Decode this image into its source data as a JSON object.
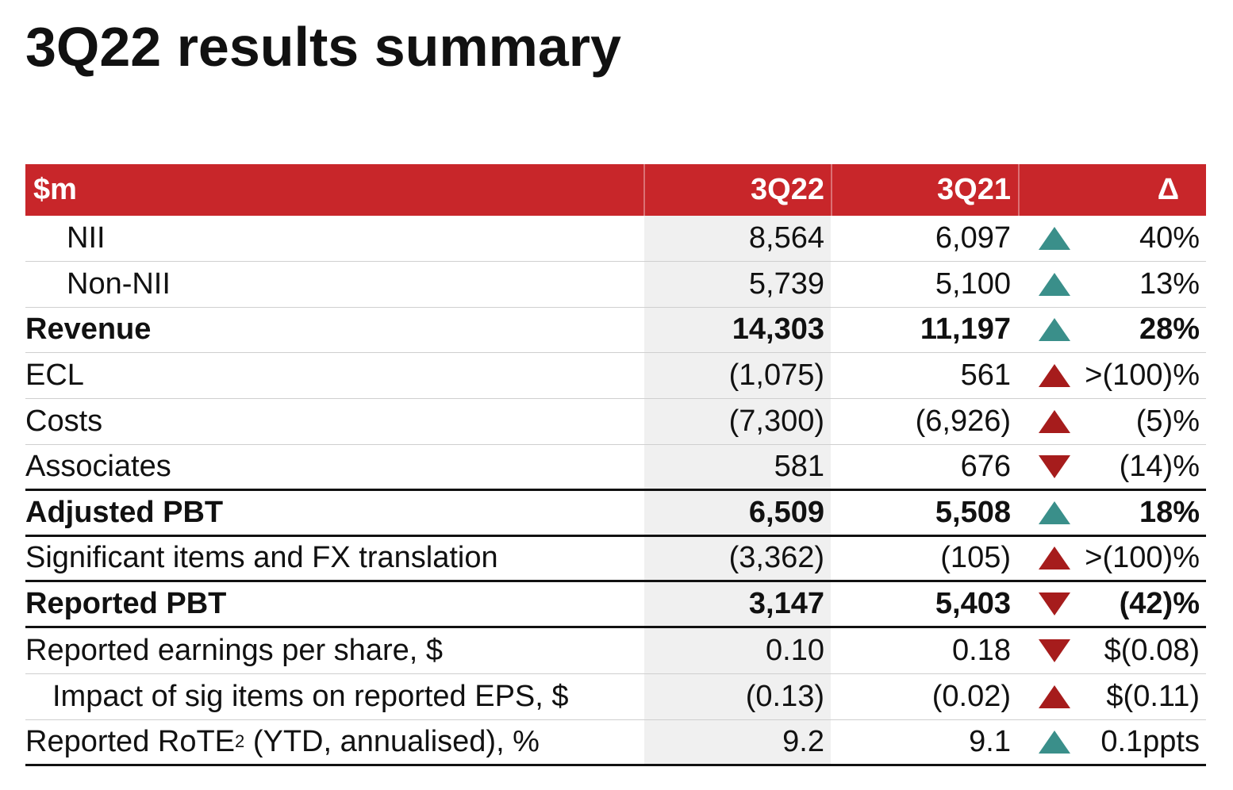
{
  "title": "3Q22 results summary",
  "colors": {
    "header_bg": "#c8262a",
    "up_good": "#3a8f8a",
    "adverse": "#a61c1c"
  },
  "table": {
    "headers": {
      "label": "$m",
      "q22": "3Q22",
      "q21": "3Q21",
      "delta": "Δ"
    },
    "rows": [
      {
        "label": "NII",
        "q22": "8,564",
        "q21": "6,097",
        "delta": "40%",
        "arrow": "up",
        "arrow_color": "#3a8f8a"
      },
      {
        "label": "Non-NII",
        "q22": "5,739",
        "q21": "5,100",
        "delta": "13%",
        "arrow": "up",
        "arrow_color": "#3a8f8a"
      },
      {
        "label": "Revenue",
        "q22": "14,303",
        "q21": "11,197",
        "delta": "28%",
        "arrow": "up",
        "arrow_color": "#3a8f8a"
      },
      {
        "label": "ECL",
        "q22": "(1,075)",
        "q21": "561",
        "delta": ">(100)%",
        "arrow": "up",
        "arrow_color": "#a61c1c"
      },
      {
        "label": "Costs",
        "q22": "(7,300)",
        "q21": "(6,926)",
        "delta": "(5)%",
        "arrow": "up",
        "arrow_color": "#a61c1c"
      },
      {
        "label": "Associates",
        "q22": "581",
        "q21": "676",
        "delta": "(14)%",
        "arrow": "down",
        "arrow_color": "#a61c1c"
      },
      {
        "label": "Adjusted PBT",
        "q22": "6,509",
        "q21": "5,508",
        "delta": "18%",
        "arrow": "up",
        "arrow_color": "#3a8f8a"
      },
      {
        "label": "Significant items and FX translation",
        "q22": "(3,362)",
        "q21": "(105)",
        "delta": ">(100)%",
        "arrow": "up",
        "arrow_color": "#a61c1c"
      },
      {
        "label": "Reported PBT",
        "q22": "3,147",
        "q21": "5,403",
        "delta": "(42)%",
        "arrow": "down",
        "arrow_color": "#a61c1c"
      },
      {
        "label": "Reported earnings per share, $",
        "q22": "0.10",
        "q21": "0.18",
        "delta": "$(0.08)",
        "arrow": "down",
        "arrow_color": "#a61c1c"
      },
      {
        "label": "Impact of sig items on reported EPS, $",
        "q22": "(0.13)",
        "q21": "(0.02)",
        "delta": "$(0.11)",
        "arrow": "up",
        "arrow_color": "#a61c1c"
      },
      {
        "label_pre": "Reported RoTE",
        "label_sup": "2",
        "label_post": " (YTD, annualised), %",
        "q22": "9.2",
        "q21": "9.1",
        "delta": "0.1ppts",
        "arrow": "up",
        "arrow_color": "#3a8f8a"
      }
    ]
  }
}
